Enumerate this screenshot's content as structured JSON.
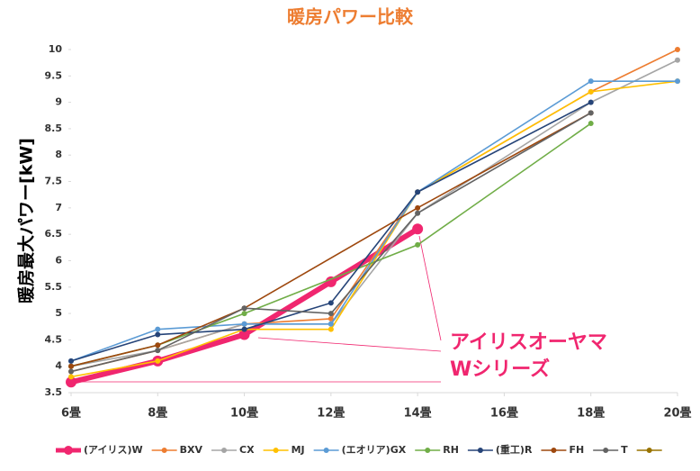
{
  "chart_data": {
    "type": "line",
    "title": "暖房パワー比較",
    "ylabel": "暖房最大パワー[kW]",
    "annotation": [
      "アイリスオーヤマ",
      "Wシリーズ"
    ],
    "xlim": [
      6,
      20
    ],
    "xticks": [
      {
        "value": 6,
        "label": "6畳"
      },
      {
        "value": 8,
        "label": "8畳"
      },
      {
        "value": 10,
        "label": "10畳"
      },
      {
        "value": 12,
        "label": "12畳"
      },
      {
        "value": 14,
        "label": "14畳"
      },
      {
        "value": 16,
        "label": "16畳"
      },
      {
        "value": 18,
        "label": "18畳"
      },
      {
        "value": 20,
        "label": "20畳"
      }
    ],
    "ylim": [
      3.5,
      10
    ],
    "yticks": [
      3.5,
      4,
      4.5,
      5,
      5.5,
      6,
      6.5,
      7,
      7.5,
      8,
      8.5,
      9,
      9.5,
      10
    ],
    "grid": false,
    "legend": "bottom",
    "series": [
      {
        "name": "(アイリス)W",
        "color": "#f0266f",
        "x": [
          6,
          8,
          10,
          12,
          14
        ],
        "values": [
          3.7,
          4.1,
          4.6,
          5.6,
          6.6
        ]
      },
      {
        "name": "BXV",
        "color": "#ed7d31",
        "x": [
          6,
          8,
          10,
          12,
          14,
          18,
          20
        ],
        "values": [
          3.9,
          4.3,
          4.8,
          4.9,
          7.3,
          9.2,
          10.0
        ]
      },
      {
        "name": "CX",
        "color": "#a5a5a5",
        "x": [
          6,
          8,
          10,
          12,
          14,
          18,
          20
        ],
        "values": [
          4.0,
          4.3,
          4.8,
          4.8,
          6.9,
          9.0,
          9.8
        ]
      },
      {
        "name": "MJ",
        "color": "#ffc000",
        "x": [
          6,
          8,
          10,
          12,
          14,
          18,
          20
        ],
        "values": [
          3.8,
          4.1,
          4.7,
          4.7,
          7.3,
          9.2,
          9.4
        ]
      },
      {
        "name": "(エオリア)GX",
        "color": "#5b9bd5",
        "x": [
          6,
          8,
          10,
          12,
          14,
          18,
          20
        ],
        "values": [
          4.1,
          4.7,
          4.8,
          4.8,
          7.3,
          9.4,
          9.4
        ]
      },
      {
        "name": "RH",
        "color": "#70ad47",
        "x": [
          6,
          8,
          10,
          14,
          18
        ],
        "values": [
          4.0,
          4.4,
          5.0,
          6.3,
          8.6
        ]
      },
      {
        "name": "(重工)R",
        "color": "#264478",
        "x": [
          6,
          8,
          10,
          12,
          14,
          18
        ],
        "values": [
          4.1,
          4.6,
          4.7,
          5.2,
          7.3,
          9.0
        ]
      },
      {
        "name": "FH",
        "color": "#9e480e",
        "x": [
          6,
          8,
          10,
          14,
          18
        ],
        "values": [
          4.0,
          4.4,
          5.1,
          7.0,
          8.8
        ]
      },
      {
        "name": "T",
        "color": "#636363",
        "x": [
          6,
          8,
          10,
          12,
          14,
          18
        ],
        "values": [
          3.9,
          4.3,
          5.1,
          5.0,
          6.9,
          8.8
        ]
      },
      {
        "name": null,
        "color": "#997300",
        "x": [],
        "values": []
      }
    ]
  }
}
